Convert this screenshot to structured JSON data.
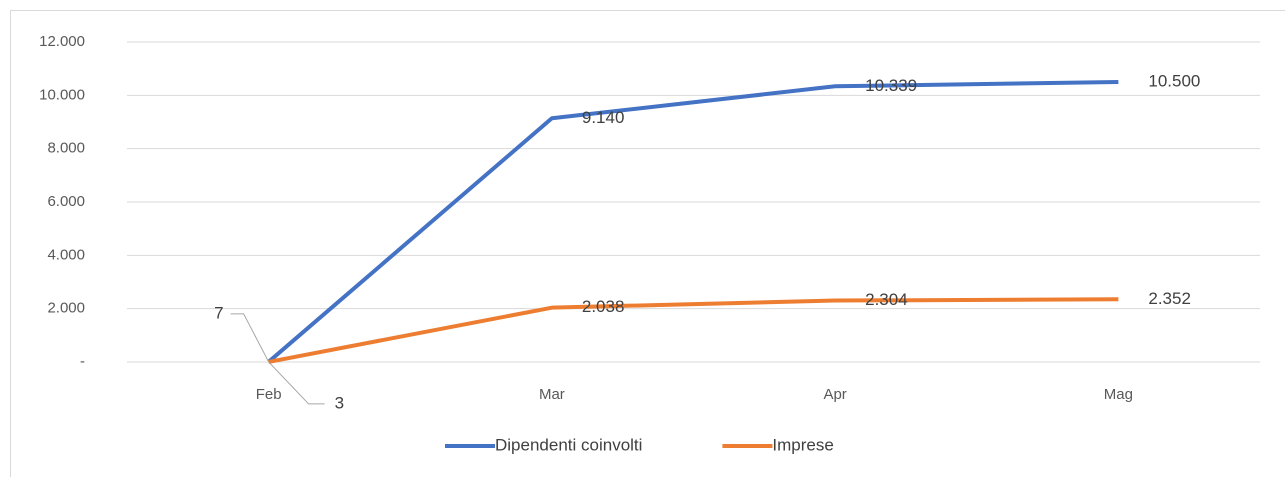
{
  "chart_data": {
    "type": "line",
    "categories": [
      "Feb",
      "Mar",
      "Apr",
      "Mag"
    ],
    "series": [
      {
        "name": "Dipendenti coinvolti",
        "color": "#4472c4",
        "values": [
          7,
          9140,
          10339,
          10500
        ],
        "value_labels": [
          "7",
          "9.140",
          "10.339",
          "10.500"
        ]
      },
      {
        "name": "Imprese",
        "color": "#ed7d31",
        "values": [
          3,
          2038,
          2304,
          2352
        ],
        "value_labels": [
          "3",
          "2.038",
          "2.304",
          "2.352"
        ]
      }
    ],
    "ylim": [
      0,
      12000
    ],
    "yticks": [
      {
        "value": 0,
        "label": "-"
      },
      {
        "value": 2000,
        "label": "2.000"
      },
      {
        "value": 4000,
        "label": "4.000"
      },
      {
        "value": 6000,
        "label": "6.000"
      },
      {
        "value": 8000,
        "label": "8.000"
      },
      {
        "value": 10000,
        "label": "10.000"
      },
      {
        "value": 12000,
        "label": "12.000"
      }
    ],
    "grid": true,
    "legend": "bottom"
  }
}
